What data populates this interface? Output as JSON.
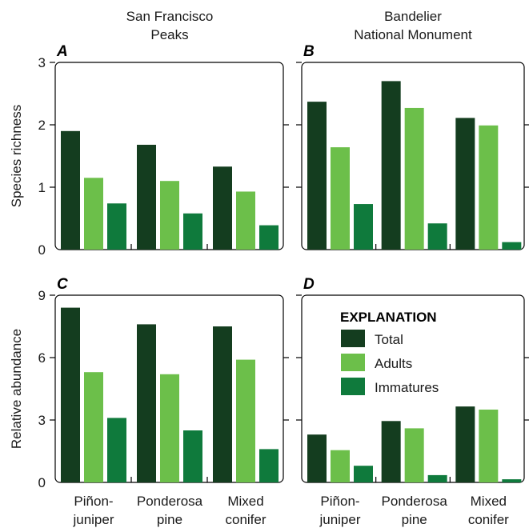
{
  "column_titles": [
    [
      "San Francisco",
      "Peaks"
    ],
    [
      "Bandelier",
      "National Monument"
    ]
  ],
  "legend": {
    "title": "EXPLANATION",
    "items": [
      "Total",
      "Adults",
      "Immatures"
    ]
  },
  "colors": {
    "Total": "#143d1f",
    "Adults": "#6cbf4a",
    "Immatures": "#0f7a3c"
  },
  "chart_data": [
    {
      "type": "bar",
      "panel": "A",
      "column_title": "San Francisco Peaks",
      "ylabel": "Species richness",
      "ylim": [
        0,
        3
      ],
      "yticks": [
        0,
        1,
        2,
        3
      ],
      "categories": [
        "Piñon-juniper",
        "Ponderosa pine",
        "Mixed conifer"
      ],
      "series": [
        {
          "name": "Total",
          "values": [
            1.9,
            1.68,
            1.33
          ]
        },
        {
          "name": "Adults",
          "values": [
            1.15,
            1.1,
            0.93
          ]
        },
        {
          "name": "Immatures",
          "values": [
            0.74,
            0.58,
            0.39
          ]
        }
      ]
    },
    {
      "type": "bar",
      "panel": "B",
      "column_title": "Bandelier National Monument",
      "ylim": [
        0,
        3
      ],
      "yticks": [
        0,
        1,
        2,
        3
      ],
      "categories": [
        "Piñon-juniper",
        "Ponderosa pine",
        "Mixed conifer"
      ],
      "series": [
        {
          "name": "Total",
          "values": [
            2.37,
            2.7,
            2.11
          ]
        },
        {
          "name": "Adults",
          "values": [
            1.64,
            2.27,
            1.99
          ]
        },
        {
          "name": "Immatures",
          "values": [
            0.73,
            0.42,
            0.12
          ]
        }
      ]
    },
    {
      "type": "bar",
      "panel": "C",
      "ylabel": "Relative abundance",
      "ylim": [
        0,
        9
      ],
      "yticks": [
        0,
        3,
        6,
        9
      ],
      "categories": [
        "Piñon-juniper",
        "Ponderosa pine",
        "Mixed conifer"
      ],
      "category_labels": [
        [
          "Piñon-",
          "juniper"
        ],
        [
          "Ponderosa",
          "pine"
        ],
        [
          "Mixed",
          "conifer"
        ]
      ],
      "series": [
        {
          "name": "Total",
          "values": [
            8.4,
            7.6,
            7.5
          ]
        },
        {
          "name": "Adults",
          "values": [
            5.3,
            5.2,
            5.9
          ]
        },
        {
          "name": "Immatures",
          "values": [
            3.1,
            2.5,
            1.6
          ]
        }
      ]
    },
    {
      "type": "bar",
      "panel": "D",
      "ylim": [
        0,
        9
      ],
      "yticks": [
        0,
        3,
        6,
        9
      ],
      "categories": [
        "Piñon-juniper",
        "Ponderosa pine",
        "Mixed conifer"
      ],
      "category_labels": [
        [
          "Piñon-",
          "juniper"
        ],
        [
          "Ponderosa",
          "pine"
        ],
        [
          "Mixed",
          "conifer"
        ]
      ],
      "series": [
        {
          "name": "Total",
          "values": [
            2.3,
            2.95,
            3.65
          ]
        },
        {
          "name": "Adults",
          "values": [
            1.55,
            2.6,
            3.5
          ]
        },
        {
          "name": "Immatures",
          "values": [
            0.8,
            0.35,
            0.15
          ]
        }
      ]
    }
  ]
}
